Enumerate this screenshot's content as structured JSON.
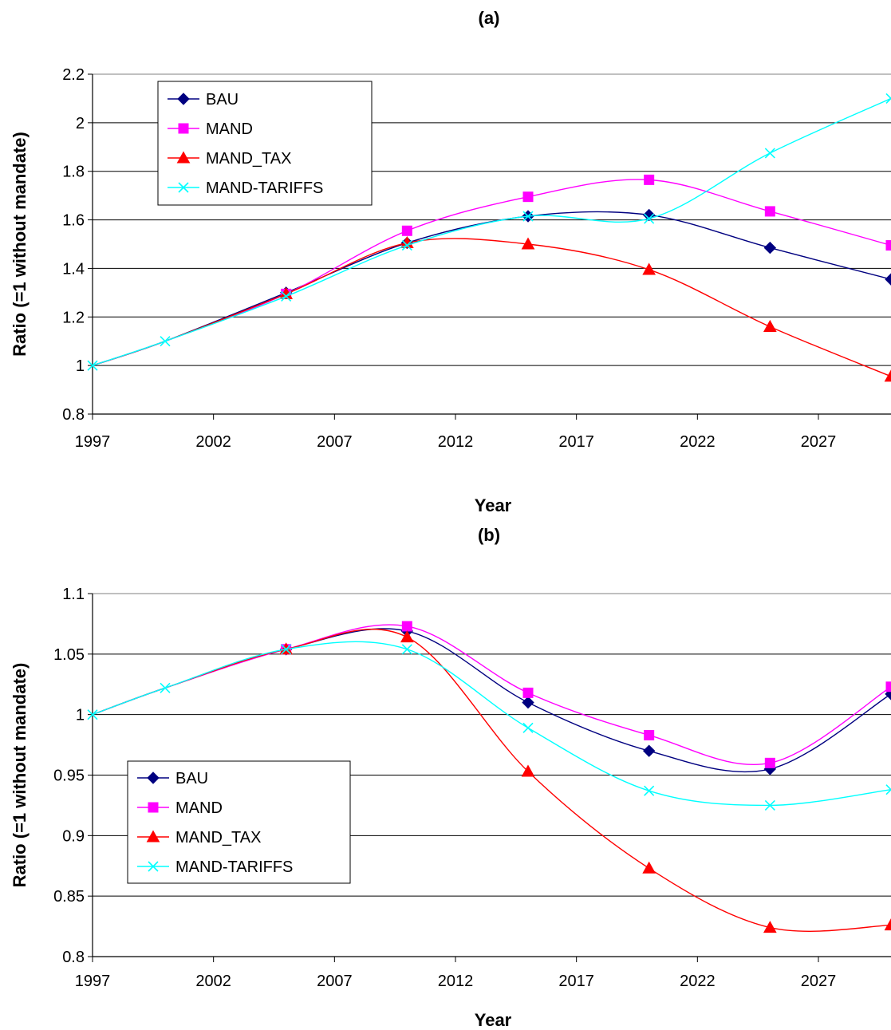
{
  "chart_data": [
    {
      "type": "line",
      "title": "(a)",
      "xlabel": "Year",
      "ylabel": "Ratio (=1 without mandate)",
      "xlim": [
        1997,
        2030
      ],
      "ylim": [
        0.8,
        2.2
      ],
      "xticks": [
        1997,
        2002,
        2007,
        2012,
        2017,
        2022,
        2027
      ],
      "xtick_labels": [
        "1997",
        "2002",
        "2007",
        "2012",
        "2017",
        "2022",
        "2027"
      ],
      "yticks": [
        0.8,
        1.0,
        1.2,
        1.4,
        1.6,
        1.8,
        2.0,
        2.2
      ],
      "ytick_labels": [
        "0.8",
        "1",
        "1.2",
        "1.4",
        "1.6",
        "1.8",
        "2",
        "2.2"
      ],
      "grid": "horizontal",
      "legend": "top-left",
      "x": [
        1997,
        2000,
        2005,
        2010,
        2015,
        2020,
        2025,
        2030
      ],
      "series": [
        {
          "name": "BAU",
          "color": "#000080",
          "marker": "diamond",
          "values": [
            1.0,
            1.1,
            1.3,
            1.505,
            1.615,
            1.62,
            1.485,
            1.355
          ]
        },
        {
          "name": "MAND",
          "color": "#FF00FF",
          "marker": "square",
          "values": [
            1.0,
            1.1,
            1.295,
            1.555,
            1.695,
            1.765,
            1.635,
            1.495
          ]
        },
        {
          "name": "MAND_TAX",
          "color": "#FF0000",
          "marker": "triangle",
          "values": [
            1.0,
            1.1,
            1.295,
            1.505,
            1.5,
            1.395,
            1.16,
            0.955
          ]
        },
        {
          "name": "MAND-TARIFFS",
          "color": "#00FFFF",
          "marker": "x",
          "values": [
            1.0,
            1.1,
            1.285,
            1.495,
            1.615,
            1.605,
            1.875,
            2.1
          ]
        }
      ]
    },
    {
      "type": "line",
      "title": "(b)",
      "xlabel": "Year",
      "ylabel": "Ratio (=1 without mandate)",
      "xlim": [
        1997,
        2030
      ],
      "ylim": [
        0.8,
        1.1
      ],
      "xticks": [
        1997,
        2002,
        2007,
        2012,
        2017,
        2022,
        2027
      ],
      "xtick_labels": [
        "1997",
        "2002",
        "2007",
        "2012",
        "2017",
        "2022",
        "2027"
      ],
      "yticks": [
        0.8,
        0.85,
        0.9,
        0.95,
        1.0,
        1.05,
        1.1
      ],
      "ytick_labels": [
        "0.8",
        "0.85",
        "0.9",
        "0.95",
        "1",
        "1.05",
        "1.1"
      ],
      "grid": "horizontal",
      "legend": "center-left",
      "x": [
        1997,
        2000,
        2005,
        2010,
        2015,
        2020,
        2025,
        2030
      ],
      "series": [
        {
          "name": "BAU",
          "color": "#000080",
          "marker": "diamond",
          "values": [
            1.0,
            1.022,
            1.054,
            1.069,
            1.01,
            0.97,
            0.955,
            1.017
          ]
        },
        {
          "name": "MAND",
          "color": "#FF00FF",
          "marker": "square",
          "values": [
            1.0,
            1.022,
            1.054,
            1.073,
            1.018,
            0.983,
            0.96,
            1.023
          ]
        },
        {
          "name": "MAND_TAX",
          "color": "#FF0000",
          "marker": "triangle",
          "values": [
            1.0,
            1.022,
            1.054,
            1.064,
            0.953,
            0.873,
            0.824,
            0.826
          ]
        },
        {
          "name": "MAND-TARIFFS",
          "color": "#00FFFF",
          "marker": "x",
          "values": [
            1.0,
            1.022,
            1.054,
            1.054,
            0.989,
            0.937,
            0.925,
            0.938
          ]
        }
      ]
    }
  ]
}
